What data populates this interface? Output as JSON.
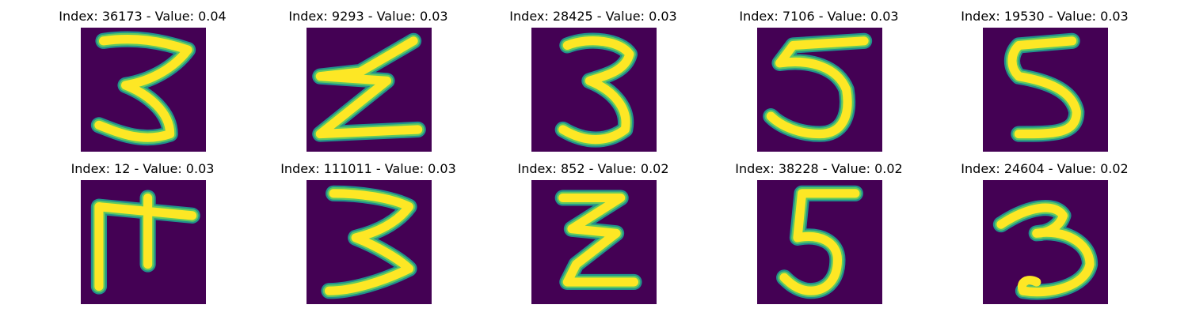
{
  "panels": [
    {
      "title": "Index: 36173 - Value: 0.04",
      "digit": "3"
    },
    {
      "title": "Index: 9293 - Value: 0.03",
      "digit": "z"
    },
    {
      "title": "Index: 28425 - Value: 0.03",
      "digit": "3"
    },
    {
      "title": "Index: 7106 - Value: 0.03",
      "digit": "5"
    },
    {
      "title": "Index: 19530 - Value: 0.03",
      "digit": "5"
    },
    {
      "title": "Index: 12 - Value: 0.03",
      "digit": "F"
    },
    {
      "title": "Index: 111011 - Value: 0.03",
      "digit": "3"
    },
    {
      "title": "Index: 852 - Value: 0.02",
      "digit": "z"
    },
    {
      "title": "Index: 38228 - Value: 0.02",
      "digit": "5"
    },
    {
      "title": "Index: 24604 - Value: 0.02",
      "digit": "3"
    }
  ],
  "colors": {
    "background": "#440154",
    "stroke_outer": "#21918c",
    "stroke_mid": "#5ec962",
    "stroke_core": "#fde725"
  }
}
